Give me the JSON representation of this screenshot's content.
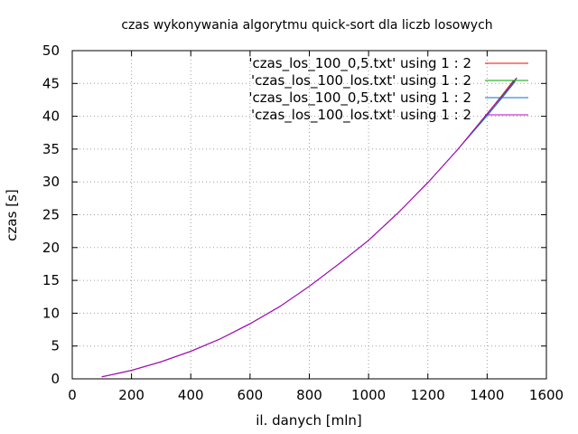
{
  "chart_data": {
    "type": "line",
    "title": "czas wykonywania algorytmu quick-sort dla liczb losowych",
    "xlabel": "il. danych [mln]",
    "ylabel": "czas [s]",
    "xlim": [
      0,
      1600
    ],
    "ylim": [
      0,
      50
    ],
    "xticks": [
      "0",
      "200",
      "400",
      "600",
      "800",
      "1000",
      "1200",
      "1400",
      "1600"
    ],
    "yticks": [
      "0",
      "5",
      "10",
      "15",
      "20",
      "25",
      "30",
      "35",
      "40",
      "45",
      "50"
    ],
    "grid": true,
    "legend_position": "top-right",
    "series": [
      {
        "name": "'czas_los_100_0,5.txt' using 1 : 2",
        "color": "#ff0000",
        "x": [
          100,
          200,
          300,
          400,
          500,
          600,
          700,
          800,
          900,
          1000,
          1100,
          1200,
          1300,
          1400,
          1450,
          1490
        ],
        "y": [
          0.3,
          1.3,
          2.6,
          4.2,
          6.1,
          8.4,
          11.0,
          14.1,
          17.5,
          21.1,
          25.3,
          29.9,
          34.9,
          40.4,
          43.2,
          45.5
        ]
      },
      {
        "name": "'czas_los_100_los.txt' using 1 : 2",
        "color": "#00a000",
        "x": [
          100,
          200,
          300,
          400,
          500,
          600,
          700,
          800,
          900,
          1000,
          1100,
          1200,
          1300,
          1400,
          1450,
          1500
        ],
        "y": [
          0.3,
          1.3,
          2.6,
          4.2,
          6.1,
          8.4,
          11.0,
          14.1,
          17.5,
          21.1,
          25.3,
          29.9,
          34.9,
          40.3,
          43.1,
          45.9
        ]
      },
      {
        "name": "'czas_los_100_0,5.txt' using 1 : 2",
        "color": "#0070d0",
        "x": [
          100,
          200,
          300,
          400,
          500,
          600,
          700,
          800,
          900,
          1000,
          1100,
          1200,
          1300,
          1400,
          1450,
          1495
        ],
        "y": [
          0.3,
          1.3,
          2.6,
          4.2,
          6.1,
          8.4,
          11.0,
          14.1,
          17.5,
          21.1,
          25.3,
          29.9,
          34.9,
          40.1,
          42.8,
          45.3
        ]
      },
      {
        "name": "'czas_los_100_los.txt' using 1 : 2",
        "color": "#c000c0",
        "x": [
          100,
          200,
          300,
          400,
          500,
          600,
          700,
          800,
          900,
          1000,
          1100,
          1200,
          1300,
          1400,
          1450,
          1500
        ],
        "y": [
          0.3,
          1.3,
          2.6,
          4.2,
          6.1,
          8.4,
          11.0,
          14.1,
          17.5,
          21.1,
          25.3,
          29.9,
          34.9,
          40.4,
          43.0,
          45.8
        ]
      }
    ]
  }
}
